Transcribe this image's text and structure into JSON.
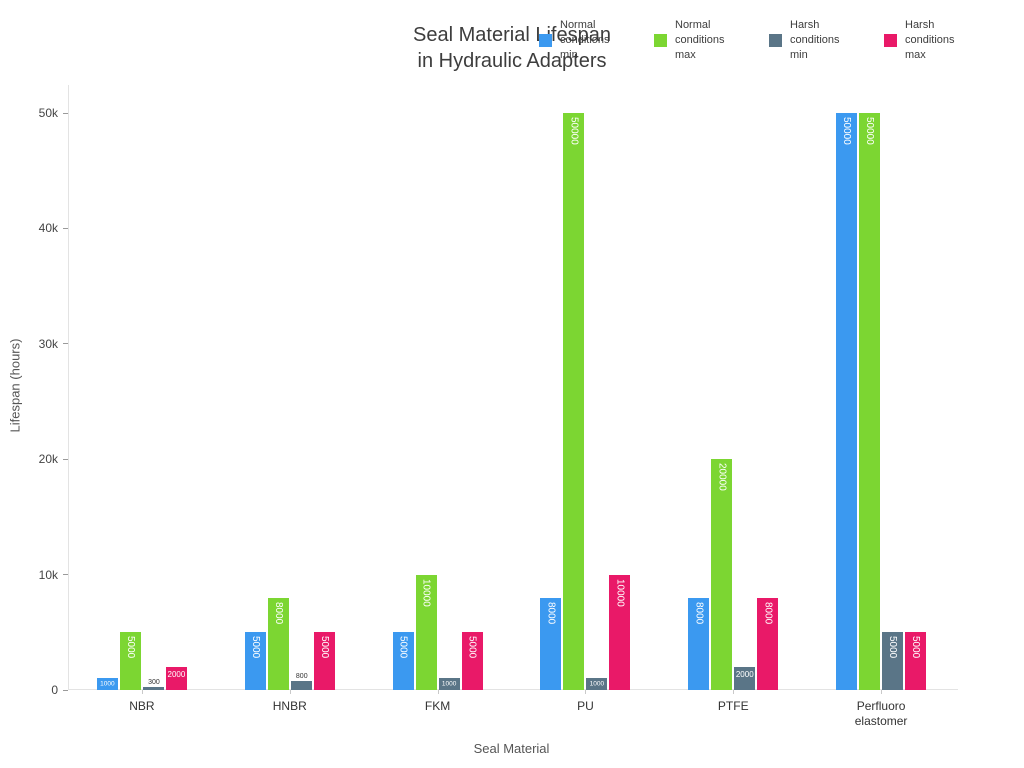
{
  "title_text": "Seal Material Lifespan\nin Hydraulic Adapters",
  "chart_data": {
    "type": "bar",
    "title": "Seal Material Lifespan in Hydraulic Adapters",
    "xlabel": "Seal Material",
    "ylabel": "Lifespan (hours)",
    "ylim": [
      0,
      50000
    ],
    "grid": false,
    "legend_position": "top-right",
    "ytick_values": [
      0,
      10000,
      20000,
      30000,
      40000,
      50000
    ],
    "ytick_labels": [
      "0",
      "10k",
      "20k",
      "30k",
      "40k",
      "50k"
    ],
    "categories": [
      "NBR",
      "HNBR",
      "FKM",
      "PU",
      "PTFE",
      "Perfluoro elastomer"
    ],
    "series": [
      {
        "name": "Normal conditions min",
        "color": "#3b99f0",
        "values": [
          1000,
          5000,
          5000,
          8000,
          8000,
          50000
        ]
      },
      {
        "name": "Normal conditions max",
        "color": "#7cd632",
        "values": [
          5000,
          8000,
          10000,
          50000,
          20000,
          50000
        ]
      },
      {
        "name": "Harsh conditions min",
        "color": "#5a7587",
        "values": [
          300,
          800,
          1000,
          1000,
          2000,
          5000
        ]
      },
      {
        "name": "Harsh conditions max",
        "color": "#e91968",
        "values": [
          2000,
          5000,
          5000,
          10000,
          8000,
          5000
        ]
      }
    ]
  }
}
